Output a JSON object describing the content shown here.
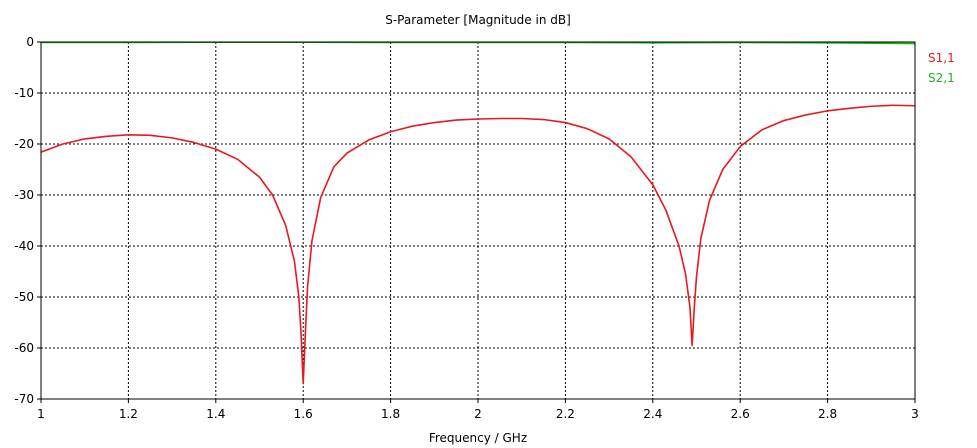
{
  "chart_data": {
    "type": "line",
    "title": "S-Parameter [Magnitude in dB]",
    "xlabel": "Frequency / GHz",
    "ylabel": "",
    "xlim": [
      1,
      3
    ],
    "ylim": [
      -70,
      0
    ],
    "xticks": [
      1,
      1.2,
      1.4,
      1.6,
      1.8,
      2,
      2.2,
      2.4,
      2.6,
      2.8,
      3
    ],
    "yticks": [
      0,
      -10,
      -20,
      -30,
      -40,
      -50,
      -60,
      -70
    ],
    "grid": true,
    "legend_position": "right",
    "series": [
      {
        "name": "S1,1",
        "color": "#e8191d",
        "x": [
          1.0,
          1.05,
          1.1,
          1.15,
          1.2,
          1.25,
          1.3,
          1.35,
          1.4,
          1.45,
          1.5,
          1.53,
          1.56,
          1.58,
          1.59,
          1.595,
          1.6,
          1.605,
          1.61,
          1.62,
          1.64,
          1.67,
          1.7,
          1.75,
          1.8,
          1.85,
          1.9,
          1.95,
          2.0,
          2.05,
          2.1,
          2.15,
          2.2,
          2.25,
          2.3,
          2.35,
          2.4,
          2.43,
          2.46,
          2.475,
          2.485,
          2.49,
          2.495,
          2.5,
          2.51,
          2.53,
          2.56,
          2.6,
          2.65,
          2.7,
          2.75,
          2.8,
          2.85,
          2.9,
          2.95,
          3.0
        ],
        "y": [
          -21.6,
          -20.0,
          -19.0,
          -18.5,
          -18.2,
          -18.3,
          -18.8,
          -19.7,
          -21.0,
          -23.0,
          -26.5,
          -30.0,
          -36.0,
          -43.0,
          -50.0,
          -57.0,
          -67.0,
          -57.0,
          -48.0,
          -39.0,
          -30.5,
          -24.5,
          -21.8,
          -19.2,
          -17.6,
          -16.5,
          -15.8,
          -15.3,
          -15.1,
          -15.0,
          -15.0,
          -15.2,
          -15.8,
          -17.0,
          -19.0,
          -22.5,
          -28.0,
          -33.0,
          -40.0,
          -45.5,
          -52.0,
          -59.5,
          -52.0,
          -46.0,
          -38.5,
          -31.0,
          -25.0,
          -20.5,
          -17.2,
          -15.4,
          -14.3,
          -13.5,
          -13.0,
          -12.6,
          -12.4,
          -12.5
        ]
      },
      {
        "name": "S2,1",
        "color": "#22b11e",
        "x": [
          1.0,
          1.2,
          1.4,
          1.6,
          1.8,
          2.0,
          2.2,
          2.4,
          2.6,
          2.8,
          3.0
        ],
        "y": [
          -0.1,
          -0.1,
          -0.05,
          -0.05,
          -0.1,
          -0.1,
          -0.1,
          -0.15,
          -0.1,
          -0.15,
          -0.3
        ]
      }
    ]
  }
}
